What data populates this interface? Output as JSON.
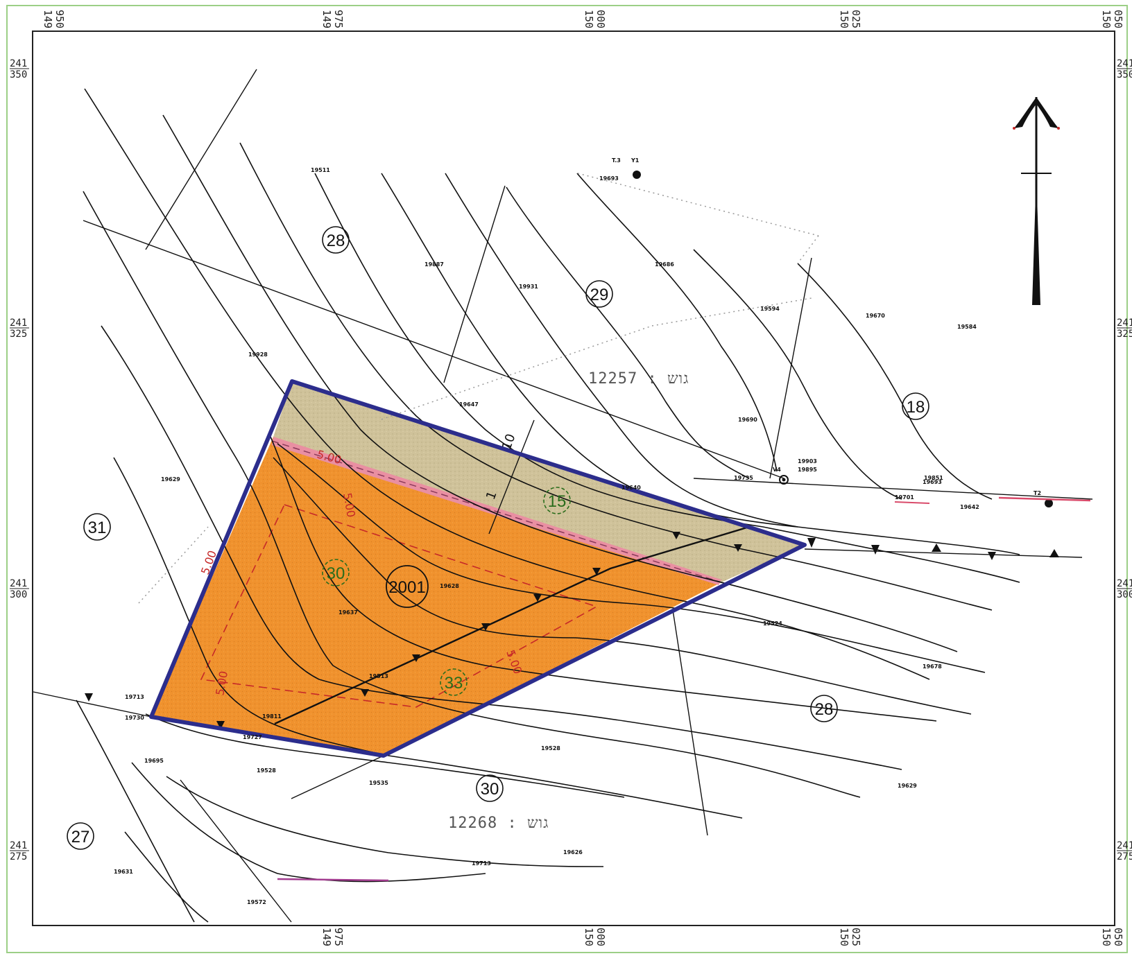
{
  "map": {
    "grid_top": [
      {
        "l1": "149",
        "l2": "950"
      },
      {
        "l1": "149",
        "l2": "975"
      },
      {
        "l1": "150",
        "l2": "000"
      },
      {
        "l1": "150",
        "l2": "025"
      },
      {
        "l1": "150",
        "l2": "050"
      }
    ],
    "grid_bottom": [
      {
        "l1": "149",
        "l2": "975"
      },
      {
        "l1": "150",
        "l2": "000"
      },
      {
        "l1": "150",
        "l2": "025"
      },
      {
        "l1": "150",
        "l2": "050"
      }
    ],
    "grid_left": [
      {
        "l1": "241",
        "l2": "350"
      },
      {
        "l1": "241",
        "l2": "325"
      },
      {
        "l1": "241",
        "l2": "300"
      },
      {
        "l1": "241",
        "l2": "275"
      }
    ],
    "grid_right": [
      {
        "l1": "241",
        "l2": "350"
      },
      {
        "l1": "241",
        "l2": "325"
      },
      {
        "l1": "241",
        "l2": "300"
      },
      {
        "l1": "241",
        "l2": "275"
      }
    ],
    "parcels_circled": [
      "28",
      "29",
      "18",
      "31",
      "2001",
      "28",
      "30",
      "27"
    ],
    "parcels_dashed": [
      "15",
      "30",
      "33"
    ],
    "blocks": [
      "12257 : גוש",
      "12268 : גוש"
    ],
    "dimensions": [
      "5.00",
      "5.00",
      "5.00",
      "5.00",
      "5.00"
    ],
    "section_labels": [
      "10",
      "1"
    ],
    "elevations": [
      "19511",
      "19928",
      "19887",
      "19931",
      "19594",
      "19584",
      "19647",
      "19629",
      "19628",
      "19637",
      "19513",
      "19524",
      "19528",
      "19535",
      "19528",
      "19640",
      "19686",
      "19690",
      "19670",
      "19903",
      "19895",
      "19693",
      "19678",
      "19629",
      "19701",
      "19642",
      "19695",
      "19631",
      "19572",
      "19626",
      "19713",
      "19713",
      "19730",
      "19811",
      "19727",
      "19735",
      "19851"
    ],
    "point_labels": [
      "T.3",
      "Y1",
      "19693",
      "V4",
      "T2"
    ],
    "colors": {
      "boundary": "#2c2d8c",
      "orange_zone": "#f0922e",
      "khaki_zone": "#cfc29a",
      "pink_strip": "#e98fa2",
      "dim_red": "#c62828",
      "dashed_green": "#2a6d1c"
    },
    "icons": [
      "north-arrow-icon",
      "survey-point-icon"
    ]
  }
}
